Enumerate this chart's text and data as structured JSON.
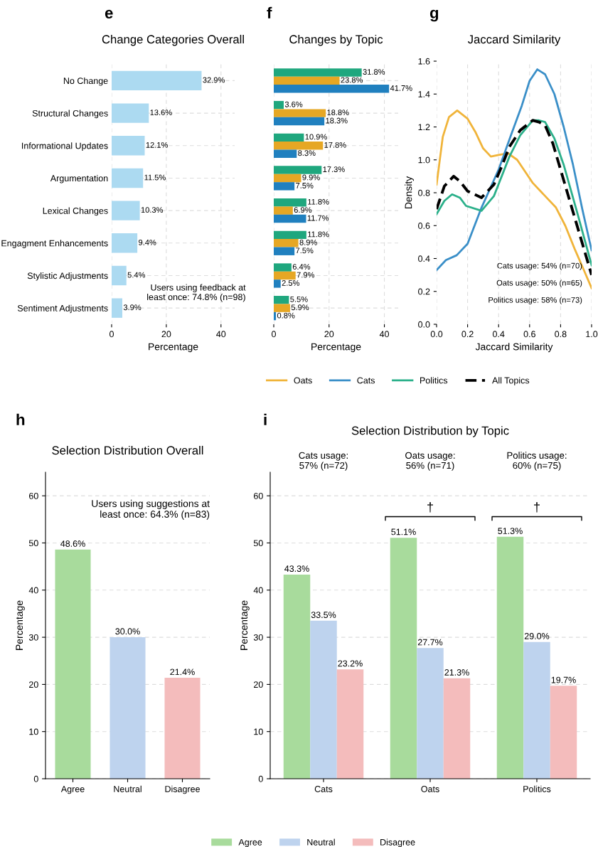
{
  "chart_data": [
    {
      "type": "bar",
      "orientation": "horizontal",
      "title": "Change Categories Overall",
      "xlabel": "Percentage",
      "categories": [
        "No Change",
        "Structural Changes",
        "Informational Updates",
        "Argumentation",
        "Lexical Changes",
        "Engagment Enhancements",
        "Stylistic Adjustments",
        "Sentiment Adjustments"
      ],
      "values": [
        32.9,
        13.6,
        12.1,
        11.5,
        10.3,
        9.4,
        5.4,
        3.9
      ],
      "value_labels": [
        "32.9%",
        "13.6%",
        "12.1%",
        "11.5%",
        "10.3%",
        "9.4%",
        "5.4%",
        "3.9%"
      ],
      "color": "#acdaf1",
      "xlim": [
        0,
        45
      ],
      "xticks": [
        0,
        20,
        40
      ],
      "grid": true,
      "annotations": [
        "e",
        "Users using feedback at\nleast once: 74.8% (n=98)"
      ]
    },
    {
      "type": "bar",
      "orientation": "horizontal",
      "title": "Changes by Topic",
      "xlabel": "Percentage",
      "categories": [
        null,
        null,
        null,
        null,
        null,
        null,
        null,
        null
      ],
      "series": [
        {
          "color": "#1fa77e",
          "values": [
            31.8,
            3.6,
            10.9,
            17.3,
            11.8,
            11.8,
            6.4,
            5.5
          ],
          "value_labels": [
            "31.8%",
            "3.6%",
            "10.9%",
            "17.3%",
            "11.8%",
            "11.8%",
            "6.4%",
            "5.5%"
          ]
        },
        {
          "color": "#e6a724",
          "values": [
            23.8,
            18.8,
            17.8,
            9.9,
            6.9,
            8.9,
            7.9,
            5.9
          ],
          "value_labels": [
            "23.8%",
            "18.8%",
            "17.8%",
            "9.9%",
            "6.9%",
            "8.9%",
            "7.9%",
            "5.9%"
          ]
        },
        {
          "color": "#2080bf",
          "values": [
            41.7,
            18.3,
            8.3,
            7.5,
            11.7,
            7.5,
            2.5,
            0.8
          ],
          "value_labels": [
            "41.7%",
            "18.3%",
            "8.3%",
            "7.5%",
            "11.7%",
            "7.5%",
            "2.5%",
            "0.8%"
          ]
        }
      ],
      "xlim": [
        0,
        45
      ],
      "xticks": [
        0,
        20,
        40
      ],
      "grid": true,
      "tick_labels": "x",
      "annotations": [
        "f"
      ]
    },
    {
      "type": "line",
      "title": "Jaccard Similarity",
      "xlabel": "Jaccard Similarity",
      "ylabel": "Density",
      "series": [
        {
          "name": "Oats",
          "color": "#f0b43a",
          "line_style": "solid",
          "x": [
            0,
            0.04,
            0.08,
            0.133,
            0.2,
            0.25,
            0.3,
            0.35,
            0.4,
            0.46,
            0.52,
            0.62,
            0.7,
            0.77,
            0.83,
            0.89,
            0.95,
            1.0
          ],
          "values": [
            0.85,
            1.14,
            1.26,
            1.3,
            1.25,
            1.17,
            1.07,
            1.02,
            1.03,
            1.04,
            1.0,
            0.86,
            0.78,
            0.71,
            0.6,
            0.46,
            0.33,
            0.22
          ]
        },
        {
          "name": "Cats",
          "color": "#3a8fc8",
          "line_style": "solid",
          "x": [
            0,
            0.06,
            0.13,
            0.2,
            0.29,
            0.4,
            0.48,
            0.55,
            0.6,
            0.65,
            0.7,
            0.76,
            0.82,
            0.88,
            0.94,
            1.0
          ],
          "values": [
            0.33,
            0.39,
            0.42,
            0.49,
            0.71,
            0.94,
            1.15,
            1.33,
            1.48,
            1.55,
            1.52,
            1.4,
            1.2,
            0.97,
            0.7,
            0.45
          ]
        },
        {
          "name": "Politics",
          "color": "#2bb08a",
          "line_style": "solid",
          "x": [
            0,
            0.05,
            0.1,
            0.15,
            0.19,
            0.29,
            0.37,
            0.42,
            0.47,
            0.54,
            0.62,
            0.66,
            0.7,
            0.76,
            0.82,
            0.91,
            1.0
          ],
          "values": [
            0.67,
            0.75,
            0.79,
            0.77,
            0.72,
            0.69,
            0.78,
            0.9,
            1.02,
            1.15,
            1.24,
            1.24,
            1.23,
            1.13,
            0.97,
            0.67,
            0.36
          ]
        },
        {
          "name": "All Topics",
          "color": "#000000",
          "line_style": "dashed",
          "x": [
            0,
            0.05,
            0.11,
            0.15,
            0.2,
            0.29,
            0.37,
            0.42,
            0.47,
            0.54,
            0.62,
            0.66,
            0.7,
            0.75,
            0.8,
            0.9,
            1.0
          ],
          "values": [
            0.7,
            0.84,
            0.9,
            0.87,
            0.81,
            0.77,
            0.85,
            0.96,
            1.08,
            1.18,
            1.24,
            1.23,
            1.21,
            1.1,
            0.94,
            0.62,
            0.3
          ]
        }
      ],
      "xlim": [
        0,
        1
      ],
      "xticks": [
        {
          "value": 0,
          "label": "0.0"
        },
        {
          "value": 0.2,
          "label": "0.2"
        },
        {
          "value": 0.4,
          "label": "0.4"
        },
        {
          "value": 0.6,
          "label": "0.6"
        },
        {
          "value": 0.8,
          "label": "0.8"
        },
        {
          "value": 1,
          "label": "1.0"
        }
      ],
      "ylim": [
        0,
        1.6
      ],
      "yticks": [
        {
          "value": 0,
          "label": "0.0"
        },
        {
          "value": 0.2,
          "label": "0.2"
        },
        {
          "value": 0.4,
          "label": "0.4"
        },
        {
          "value": 0.6,
          "label": "0.6"
        },
        {
          "value": 0.8,
          "label": "0.8"
        },
        {
          "value": 1.0,
          "label": "1.0"
        },
        {
          "value": 1.2,
          "label": "1.2"
        },
        {
          "value": 1.4,
          "label": "1.4"
        },
        {
          "value": 1.6,
          "label": "1.6"
        }
      ],
      "grid": "x",
      "legend": "bottom",
      "annotations": [
        "g",
        "Cats usage: 54% (n=70)",
        "Oats usage: 50% (n=65)",
        "Politics usage: 58% (n=73)"
      ]
    },
    {
      "type": "bar",
      "title": "Selection Distribution Overall",
      "ylabel": "Percentage",
      "categories": [
        "Agree",
        "Neutral",
        "Disagree"
      ],
      "values": [
        48.6,
        30.0,
        21.4
      ],
      "value_labels": [
        "48.6%",
        "30.0%",
        "21.4%"
      ],
      "colors": [
        "#a8db9c",
        "#bed3ee",
        "#f4bcbc"
      ],
      "ylim": [
        0,
        65
      ],
      "yticks": [
        0,
        10,
        20,
        30,
        40,
        50,
        60
      ],
      "grid": "y",
      "annotations": [
        "h",
        "Users using suggestions at\nleast once: 64.3% (n=83)"
      ]
    },
    {
      "type": "bar",
      "title": "Selection Distribution by Topic",
      "ylabel": "Percentage",
      "categories": [
        "Cats",
        "Oats",
        "Politics"
      ],
      "series": [
        {
          "name": "Agree",
          "color": "#a8db9c",
          "values": [
            43.3,
            51.1,
            51.3
          ],
          "value_labels": [
            "43.3%",
            "51.1%",
            "51.3%"
          ]
        },
        {
          "name": "Neutral",
          "color": "#bed3ee",
          "values": [
            33.5,
            27.7,
            29.0
          ],
          "value_labels": [
            "33.5%",
            "27.7%",
            "29.0%"
          ]
        },
        {
          "name": "Disagree",
          "color": "#f4bcbc",
          "values": [
            23.2,
            21.3,
            19.7
          ],
          "value_labels": [
            "23.2%",
            "21.3%",
            "19.7%"
          ]
        }
      ],
      "ylim": [
        0,
        65
      ],
      "yticks": [
        0,
        10,
        20,
        30,
        40,
        50,
        60
      ],
      "grid": "y",
      "legend": "bottom",
      "annotations": [
        "i",
        "Cats usage:\n57% (n=72)",
        "Oats usage:\n56% (n=71)",
        "Politics usage:\n60% (n=75)",
        "†",
        "†"
      ]
    }
  ]
}
